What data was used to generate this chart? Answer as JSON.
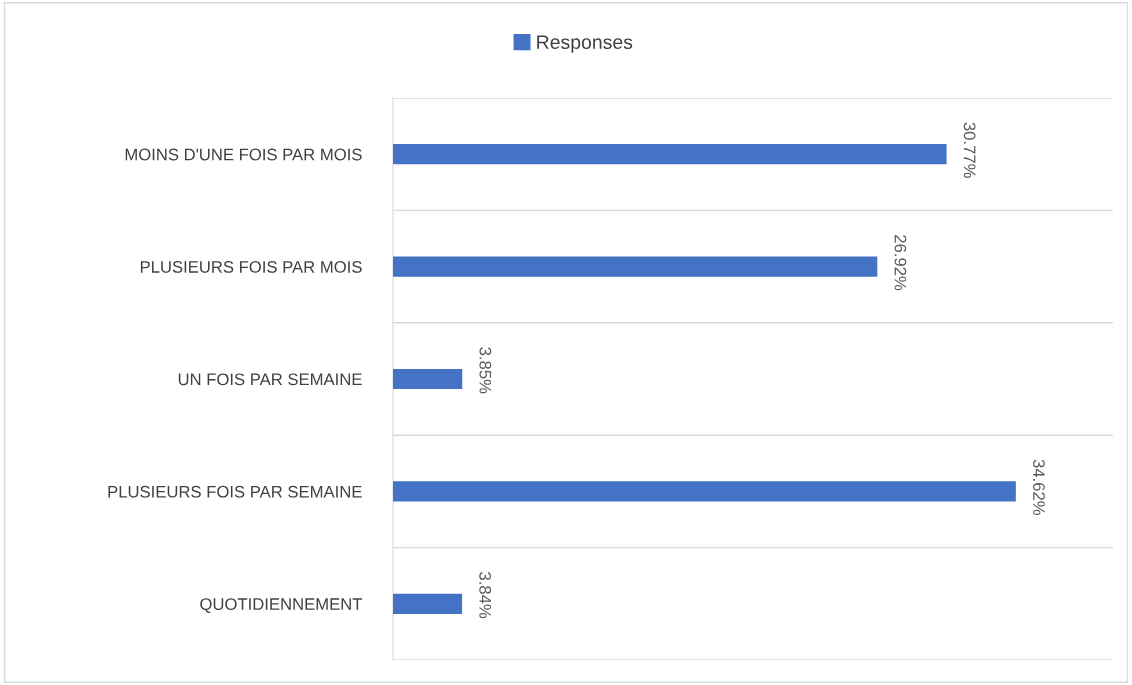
{
  "chart_data": {
    "type": "bar",
    "orientation": "horizontal",
    "categories": [
      "MOINS D'UNE FOIS PAR MOIS",
      "PLUSIEURS FOIS PAR MOIS",
      "UN FOIS PAR SEMAINE",
      "PLUSIEURS FOIS PAR SEMAINE",
      "QUOTIDIENNEMENT"
    ],
    "series": [
      {
        "name": "Responses",
        "color": "#4472c4",
        "values": [
          30.77,
          26.92,
          3.85,
          34.62,
          3.84
        ],
        "value_labels": [
          "30.77%",
          "26.92%",
          "3.85%",
          "34.62%",
          "3.84%"
        ]
      }
    ],
    "legend": "top",
    "grid": "y"
  }
}
